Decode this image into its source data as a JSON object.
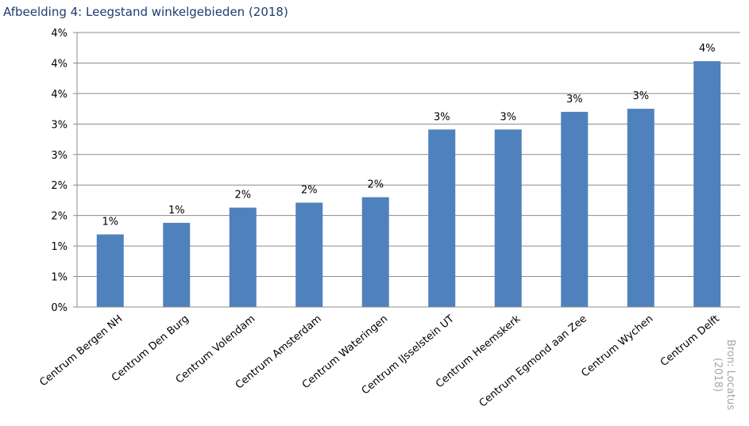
{
  "title": "Afbeelding 4: Leegstand winkelgebieden (2018)",
  "source_line1": "Bron: Locatus",
  "source_line2": "(2018)",
  "chart_data": {
    "type": "bar",
    "title": "Afbeelding 4: Leegstand winkelgebieden (2018)",
    "categories": [
      "Centrum Bergen NH",
      "Centrum Den Burg",
      "Centrum Volendam",
      "Centrum Amsterdam",
      "Centrum Wateringen",
      "Centrum IJsselstein UT",
      "Centrum Heemskerk",
      "Centrum Egmond aan Zee",
      "Centrum Wychen",
      "Centrum Delft"
    ],
    "values": [
      1.19,
      1.38,
      1.63,
      1.71,
      1.8,
      2.91,
      2.91,
      3.2,
      3.25,
      4.03
    ],
    "data_labels": [
      "1%",
      "1%",
      "2%",
      "2%",
      "2%",
      "3%",
      "3%",
      "3%",
      "3%",
      "4%"
    ],
    "ylim": [
      0,
      4.5
    ],
    "y_tick_values": [
      0,
      0.5,
      1,
      1.5,
      2,
      2.5,
      3,
      3.5,
      4,
      4.5
    ],
    "y_tick_labels": [
      "0%",
      "1%",
      "1%",
      "2%",
      "2%",
      "3%",
      "3%",
      "4%",
      "4%",
      "4%"
    ],
    "bar_color": "#4f81bd",
    "grid": true,
    "legend": "none"
  }
}
